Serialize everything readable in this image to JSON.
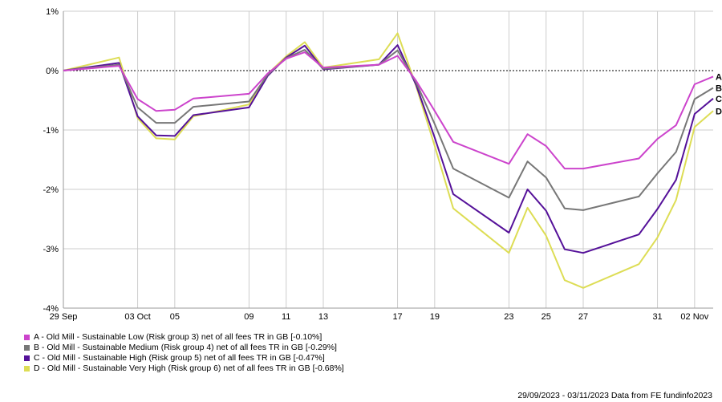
{
  "chart_data": {
    "type": "line",
    "x_tick_labels": [
      "29 Sep",
      "03 Oct",
      "05",
      "09",
      "11",
      "13",
      "17",
      "19",
      "23",
      "25",
      "27",
      "31",
      "02 Nov"
    ],
    "y_tick_labels": [
      "1%",
      "0%",
      "-1%",
      "-2%",
      "-3%",
      "-4%"
    ],
    "y_ticks": [
      1,
      0,
      -1,
      -2,
      -3,
      -4
    ],
    "ylim": [
      -4,
      1
    ],
    "xlim": [
      "2023-09-29",
      "2023-11-03"
    ],
    "grid": true,
    "zero_line": "dotted",
    "legend_position": "bottom-left",
    "x": [
      "2023-09-29",
      "2023-10-02",
      "2023-10-03",
      "2023-10-04",
      "2023-10-05",
      "2023-10-06",
      "2023-10-09",
      "2023-10-10",
      "2023-10-11",
      "2023-10-12",
      "2023-10-13",
      "2023-10-16",
      "2023-10-17",
      "2023-10-18",
      "2023-10-19",
      "2023-10-20",
      "2023-10-23",
      "2023-10-24",
      "2023-10-25",
      "2023-10-26",
      "2023-10-27",
      "2023-10-30",
      "2023-10-31",
      "2023-11-01",
      "2023-11-02",
      "2023-11-03"
    ],
    "series": [
      {
        "name": "A - Old Mill - Sustainable Low (Risk group 3) net of all fees TR in GB [-0.10%]",
        "end_label": "A",
        "color": "#cc44cc",
        "values": [
          0,
          0.08,
          -0.48,
          -0.68,
          -0.66,
          -0.47,
          -0.39,
          -0.05,
          0.2,
          0.31,
          0.05,
          0.1,
          0.25,
          -0.17,
          -0.68,
          -1.2,
          -1.57,
          -1.07,
          -1.27,
          -1.65,
          -1.65,
          -1.48,
          -1.15,
          -0.92,
          -0.23,
          -0.1
        ]
      },
      {
        "name": "B - Old Mill - Sustainable Medium (Risk group 4) net of all fees TR in GB [-0.29%]",
        "end_label": "B",
        "color": "#777777",
        "values": [
          0,
          0.1,
          -0.62,
          -0.88,
          -0.88,
          -0.61,
          -0.52,
          -0.07,
          0.21,
          0.35,
          0.03,
          0.1,
          0.34,
          -0.2,
          -0.9,
          -1.65,
          -2.14,
          -1.53,
          -1.8,
          -2.32,
          -2.35,
          -2.12,
          -1.73,
          -1.37,
          -0.48,
          -0.29
        ]
      },
      {
        "name": "C - Old Mill - Sustainable High (Risk group 5) net of all fees TR in GB [-0.47%]",
        "end_label": "C",
        "color": "#551199",
        "values": [
          0,
          0.13,
          -0.77,
          -1.09,
          -1.1,
          -0.75,
          -0.62,
          -0.09,
          0.22,
          0.42,
          0.02,
          0.1,
          0.43,
          -0.24,
          -1.13,
          -2.08,
          -2.73,
          -2.0,
          -2.36,
          -3.01,
          -3.07,
          -2.76,
          -2.33,
          -1.84,
          -0.73,
          -0.47
        ]
      },
      {
        "name": "D - Old Mill - Sustainable Very High (Risk group 6) net of all fees TR in GB [-0.68%]",
        "end_label": "D",
        "color": "#dddd55",
        "values": [
          0,
          0.22,
          -0.8,
          -1.14,
          -1.16,
          -0.77,
          -0.57,
          -0.06,
          0.24,
          0.48,
          0.05,
          0.19,
          0.63,
          -0.26,
          -1.27,
          -2.32,
          -3.07,
          -2.31,
          -2.78,
          -3.53,
          -3.66,
          -3.26,
          -2.81,
          -2.18,
          -0.95,
          -0.68
        ]
      }
    ]
  },
  "legend": [
    {
      "text": "A - Old Mill - Sustainable Low (Risk group 3) net of all fees TR in GB [-0.10%]",
      "color": "#cc44cc"
    },
    {
      "text": "B - Old Mill - Sustainable Medium (Risk group 4) net of all fees TR in GB [-0.29%]",
      "color": "#777777"
    },
    {
      "text": "C - Old Mill - Sustainable High (Risk group 5) net of all fees TR in GB [-0.47%]",
      "color": "#551199"
    },
    {
      "text": "D - Old Mill - Sustainable Very High (Risk group 6) net of all fees TR in GB [-0.68%]",
      "color": "#dddd55"
    }
  ],
  "footer": "29/09/2023 - 03/11/2023 Data from FE fundinfo2023"
}
